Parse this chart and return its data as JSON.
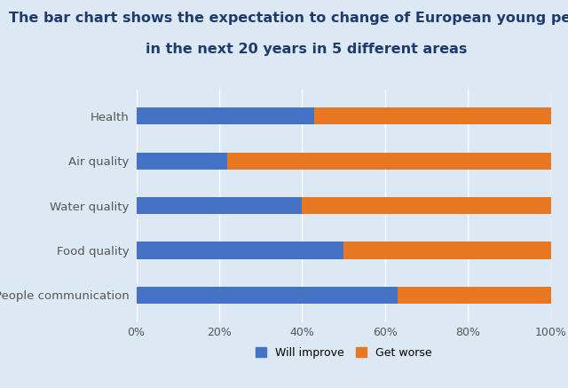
{
  "title_line1": "The bar chart shows the expectation to change of European young people",
  "title_line2": "in the next 20 years in 5 different areas",
  "categories": [
    "People communication",
    "Food quality",
    "Water quality",
    "Air quality",
    "Health"
  ],
  "will_improve": [
    63,
    50,
    40,
    22,
    43
  ],
  "get_worse": [
    37,
    50,
    60,
    78,
    57
  ],
  "color_improve": "#4472C4",
  "color_worse": "#E87722",
  "background_color": "#dce9f5",
  "title_color": "#1F3B6E",
  "label_color": "#555555",
  "grid_color": "#ffffff",
  "bar_height": 0.38,
  "xlim": [
    0,
    100
  ],
  "xticks": [
    0,
    20,
    40,
    60,
    80,
    100
  ],
  "xtick_labels": [
    "0%",
    "20%",
    "40%",
    "60%",
    "80%",
    "100%"
  ],
  "legend_improve": "Will improve",
  "legend_worse": "Get worse",
  "title_fontsize": 11.5,
  "label_fontsize": 9.5,
  "tick_fontsize": 9
}
